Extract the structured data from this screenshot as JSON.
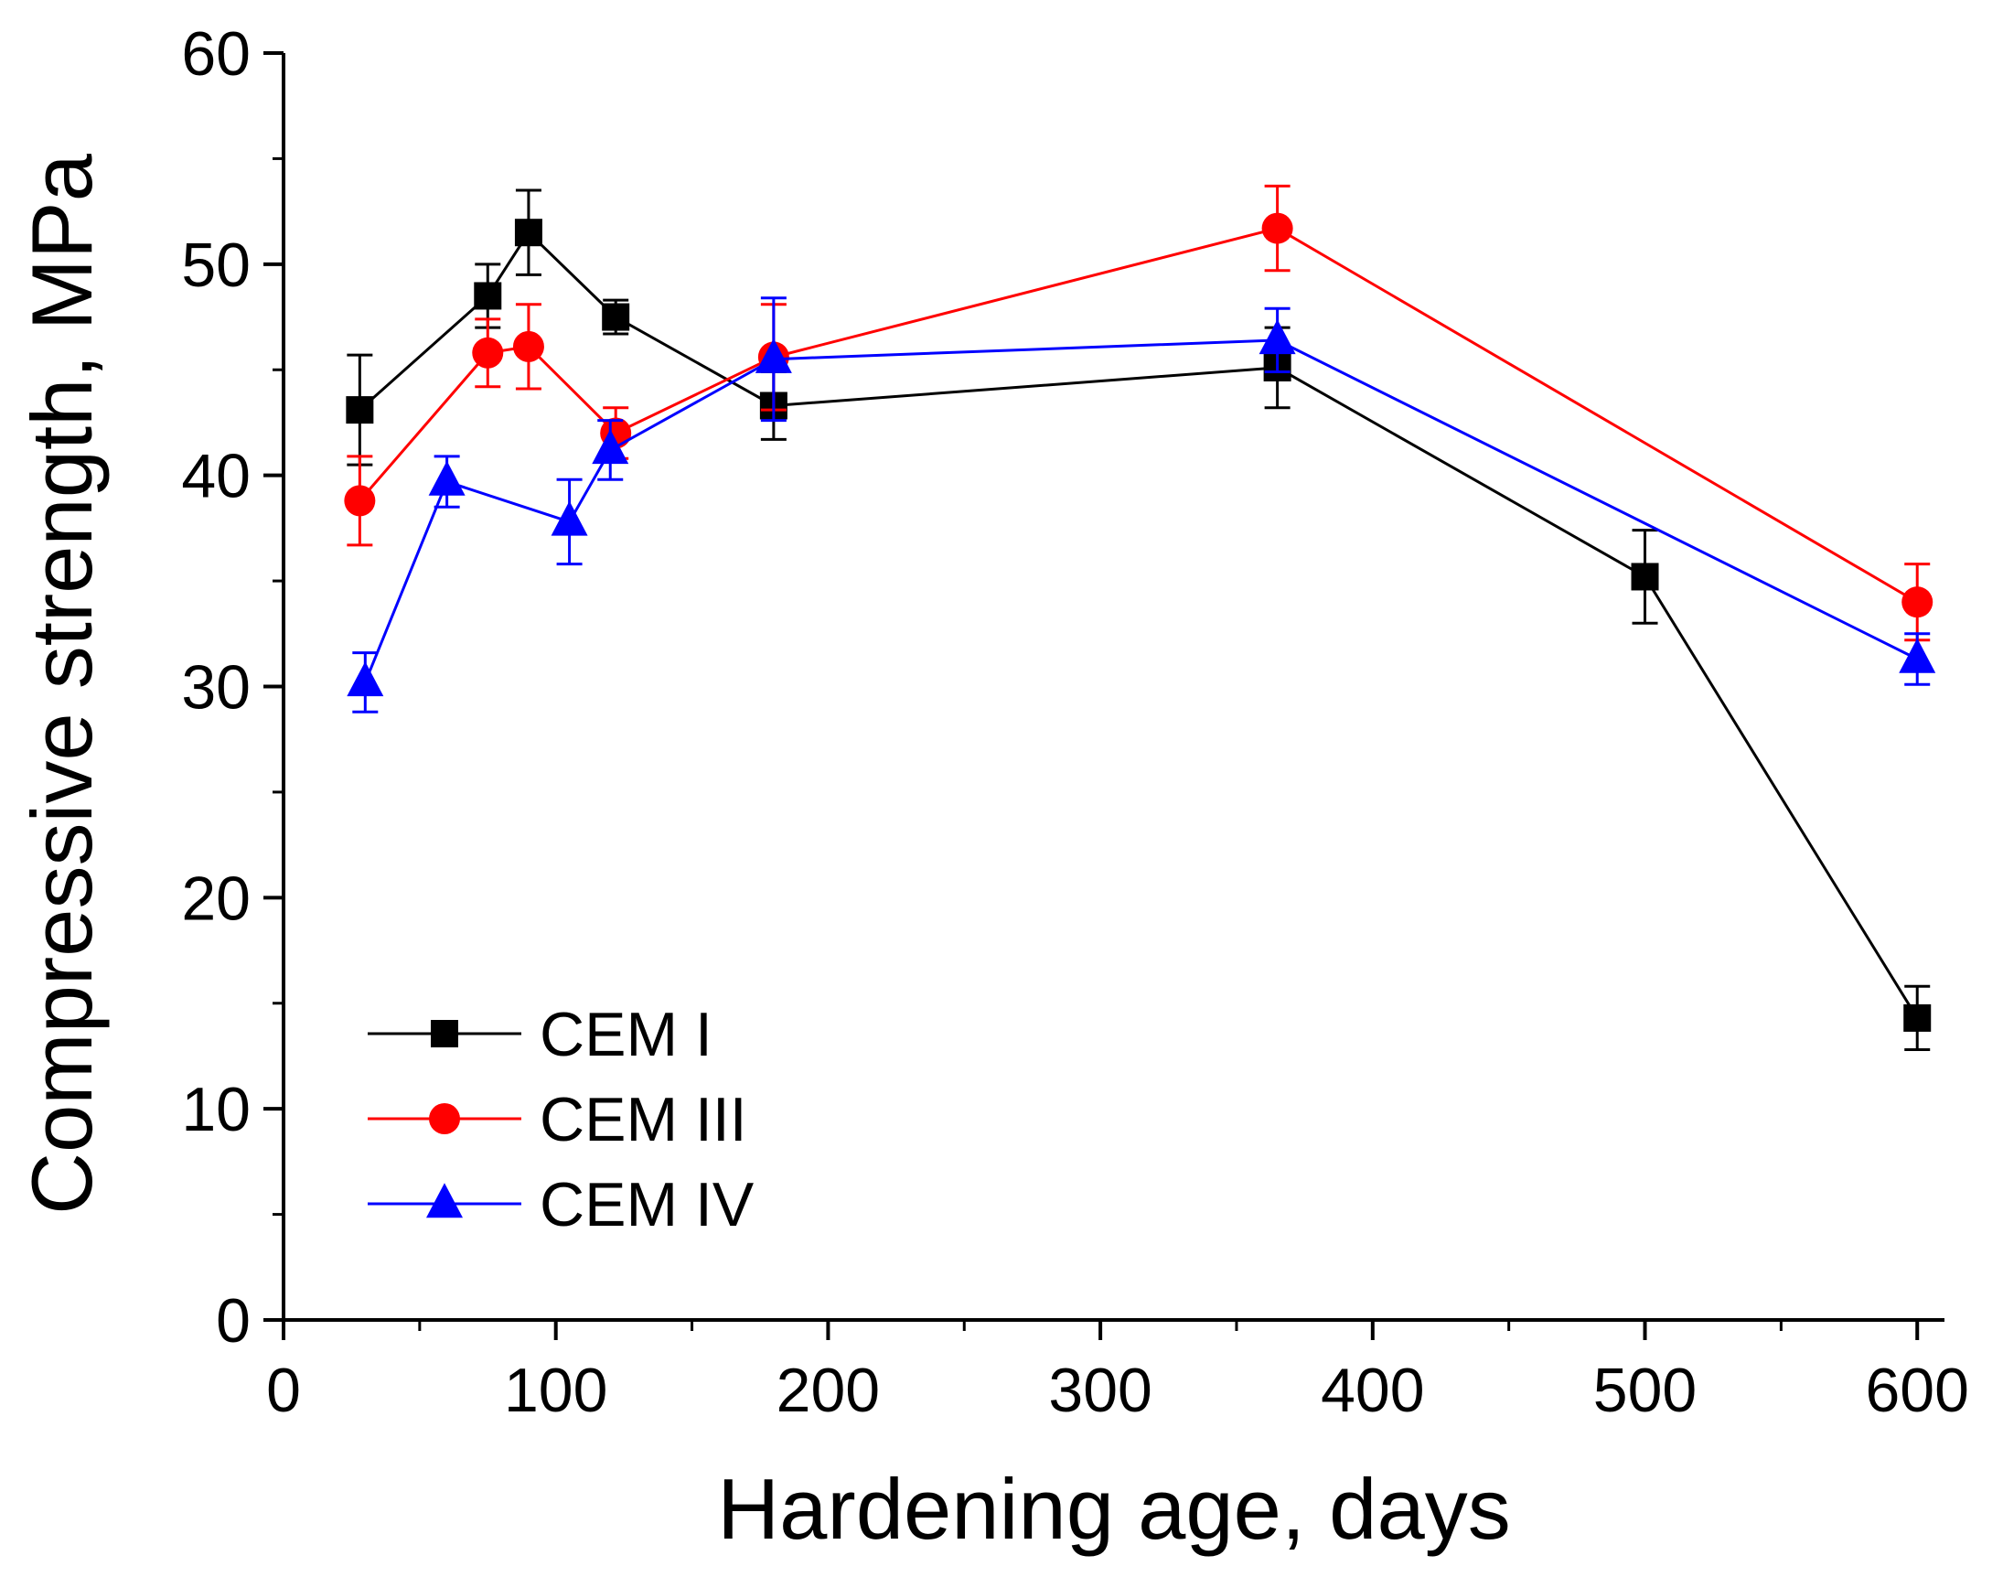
{
  "chart_data": {
    "type": "line",
    "xlabel": "Hardening age, days",
    "ylabel": "Compressive strength, MPa",
    "xlim": [
      0,
      610
    ],
    "ylim": [
      0,
      60
    ],
    "x_ticks": [
      0,
      100,
      200,
      300,
      400,
      500,
      600
    ],
    "y_ticks": [
      0,
      10,
      20,
      30,
      40,
      50,
      60
    ],
    "legend_position": "bottom-left",
    "series": [
      {
        "name": "CEM I",
        "color": "#000000",
        "marker": "square",
        "points": [
          {
            "x": 28,
            "y": 43.1,
            "err": 2.6
          },
          {
            "x": 75,
            "y": 48.5,
            "err": 1.5
          },
          {
            "x": 90,
            "y": 51.5,
            "err": 2.0
          },
          {
            "x": 122,
            "y": 47.5,
            "err": 0.8
          },
          {
            "x": 180,
            "y": 43.3,
            "err": 1.6
          },
          {
            "x": 365,
            "y": 45.1,
            "err": 1.9
          },
          {
            "x": 500,
            "y": 35.2,
            "err": 2.2
          },
          {
            "x": 600,
            "y": 14.3,
            "err": 1.5
          }
        ]
      },
      {
        "name": "CEM III",
        "color": "#ff0000",
        "marker": "circle",
        "points": [
          {
            "x": 28,
            "y": 38.8,
            "err": 2.1
          },
          {
            "x": 75,
            "y": 45.8,
            "err": 1.6
          },
          {
            "x": 90,
            "y": 46.1,
            "err": 2.0
          },
          {
            "x": 122,
            "y": 42.0,
            "err": 1.2
          },
          {
            "x": 180,
            "y": 45.6,
            "err": 2.5
          },
          {
            "x": 365,
            "y": 51.7,
            "err": 2.0
          },
          {
            "x": 600,
            "y": 34.0,
            "err": 1.8
          }
        ]
      },
      {
        "name": "CEM IV",
        "color": "#0000ff",
        "marker": "triangle",
        "points": [
          {
            "x": 30,
            "y": 30.2,
            "err": 1.4
          },
          {
            "x": 60,
            "y": 39.7,
            "err": 1.2
          },
          {
            "x": 105,
            "y": 37.8,
            "err": 2.0
          },
          {
            "x": 120,
            "y": 41.2,
            "err": 1.4
          },
          {
            "x": 180,
            "y": 45.5,
            "err": 2.9
          },
          {
            "x": 365,
            "y": 46.4,
            "err": 1.5
          },
          {
            "x": 600,
            "y": 31.3,
            "err": 1.2
          }
        ]
      }
    ]
  }
}
